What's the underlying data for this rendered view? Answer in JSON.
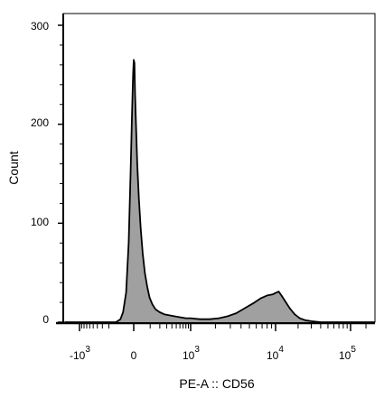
{
  "chart_data": {
    "type": "area",
    "title": "",
    "xlabel": "PE-A :: CD56",
    "ylabel": "Count",
    "xscale": "biexponential (logicle)",
    "ylim": [
      0,
      310
    ],
    "x_ticks": [
      {
        "base": "-10",
        "exp": "3",
        "value": -1000
      },
      {
        "base": "0",
        "exp": "",
        "value": 0
      },
      {
        "base": "10",
        "exp": "3",
        "value": 1000
      },
      {
        "base": "10",
        "exp": "4",
        "value": 10000
      },
      {
        "base": "10",
        "exp": "5",
        "value": 100000
      }
    ],
    "y_ticks": [
      {
        "label": "0",
        "value": 0
      },
      {
        "label": "100",
        "value": 100
      },
      {
        "label": "200",
        "value": 200
      },
      {
        "label": "300",
        "value": 300
      }
    ],
    "fill_color": "#a0a0a0",
    "line_color": "#000000",
    "series": [
      {
        "points": [
          [
            -2000,
            0
          ],
          [
            -120,
            0
          ],
          [
            -80,
            3
          ],
          [
            -60,
            10
          ],
          [
            -40,
            30
          ],
          [
            -25,
            80
          ],
          [
            -15,
            150
          ],
          [
            -8,
            210
          ],
          [
            -3,
            250
          ],
          [
            0,
            265
          ],
          [
            3,
            262
          ],
          [
            6,
            230
          ],
          [
            10,
            200
          ],
          [
            16,
            160
          ],
          [
            24,
            125
          ],
          [
            34,
            95
          ],
          [
            46,
            70
          ],
          [
            60,
            50
          ],
          [
            76,
            36
          ],
          [
            95,
            25
          ],
          [
            120,
            18
          ],
          [
            150,
            13
          ],
          [
            200,
            10
          ],
          [
            260,
            8
          ],
          [
            340,
            7
          ],
          [
            450,
            6
          ],
          [
            600,
            5
          ],
          [
            800,
            4
          ],
          [
            1000,
            4
          ],
          [
            1300,
            3
          ],
          [
            1700,
            3
          ],
          [
            2200,
            4
          ],
          [
            2800,
            6
          ],
          [
            3500,
            9
          ],
          [
            4400,
            14
          ],
          [
            5500,
            19
          ],
          [
            6700,
            24
          ],
          [
            8000,
            27
          ],
          [
            9200,
            28
          ],
          [
            10300,
            30
          ],
          [
            11000,
            31
          ],
          [
            12000,
            27
          ],
          [
            13500,
            21
          ],
          [
            15500,
            14
          ],
          [
            18000,
            8
          ],
          [
            21000,
            4
          ],
          [
            25000,
            2
          ],
          [
            30000,
            1
          ],
          [
            40000,
            0
          ],
          [
            300000,
            0
          ]
        ]
      }
    ]
  }
}
